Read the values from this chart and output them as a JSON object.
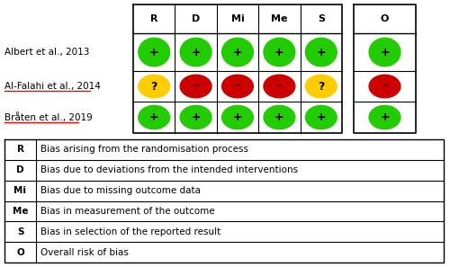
{
  "studies": [
    "Albert et al., 2013",
    "Al-Falahi et al., 2014",
    "Bråten et al., 2019"
  ],
  "cell_data": [
    [
      {
        "symbol": "+",
        "color": "#22cc00"
      },
      {
        "symbol": "+",
        "color": "#22cc00"
      },
      {
        "symbol": "+",
        "color": "#22cc00"
      },
      {
        "symbol": "+",
        "color": "#22cc00"
      },
      {
        "symbol": "+",
        "color": "#22cc00"
      },
      {
        "symbol": "+",
        "color": "#22cc00"
      }
    ],
    [
      {
        "symbol": "?",
        "color": "#ffcc00"
      },
      {
        "symbol": "-",
        "color": "#cc0000"
      },
      {
        "symbol": "-",
        "color": "#cc0000"
      },
      {
        "symbol": "-",
        "color": "#cc0000"
      },
      {
        "symbol": "?",
        "color": "#ffcc00"
      },
      {
        "symbol": "-",
        "color": "#cc0000"
      }
    ],
    [
      {
        "symbol": "+",
        "color": "#22cc00"
      },
      {
        "symbol": "+",
        "color": "#22cc00"
      },
      {
        "symbol": "+",
        "color": "#22cc00"
      },
      {
        "symbol": "+",
        "color": "#22cc00"
      },
      {
        "symbol": "+",
        "color": "#22cc00"
      },
      {
        "symbol": "+",
        "color": "#22cc00"
      }
    ]
  ],
  "main_headers": [
    "R",
    "D",
    "Mi",
    "Me",
    "S"
  ],
  "overall_header": "O",
  "legend": [
    [
      "R",
      "Bias arising from the randomisation process"
    ],
    [
      "D",
      "Bias due to deviations from the intended interventions"
    ],
    [
      "Mi",
      "Bias due to missing outcome data"
    ],
    [
      "Me",
      "Bias in measurement of the outcome"
    ],
    [
      "S",
      "Bias in selection of the reported result"
    ],
    [
      "O",
      "Overall risk of bias"
    ]
  ],
  "underlined_studies": [
    1,
    2
  ],
  "bg_color": "#ffffff"
}
